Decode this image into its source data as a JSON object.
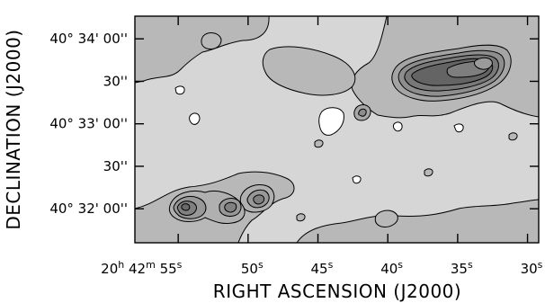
{
  "chart_data": {
    "type": "contour",
    "xlabel": "RIGHT ASCENSION (J2000)",
    "ylabel": "DECLINATION (J2000)",
    "x_ticks": [
      {
        "h": "20",
        "m": "42",
        "s": "55",
        "first": true
      },
      {
        "s": "50"
      },
      {
        "s": "45"
      },
      {
        "s": "40"
      },
      {
        "s": "35"
      },
      {
        "s": "30"
      }
    ],
    "x_ticks_seconds": [
      55,
      50,
      45,
      40,
      35,
      30
    ],
    "xlim_seconds": [
      58.1,
      29.2
    ],
    "y_ticks": [
      {
        "label": "40° 34' 00''",
        "arcsec": 120
      },
      {
        "label": "30''",
        "arcsec": 90
      },
      {
        "label": "40° 33' 00''",
        "arcsec": 60
      },
      {
        "label": "30''",
        "arcsec": 30
      },
      {
        "label": "40° 32' 00''",
        "arcsec": 0
      }
    ],
    "ylim_arcsec": [
      -24,
      136
    ],
    "background_gray": "#d8d8d8",
    "sources": [
      {
        "name": "north-west-source",
        "ra_s": 33.5,
        "dec_arcsec": 104,
        "peak_levels": 6
      },
      {
        "name": "central-knot",
        "ra_s": 46.4,
        "dec_arcsec": 21,
        "peak_levels": 3
      },
      {
        "name": "south-east-pair-1",
        "ra_s": 54.3,
        "dec_arcsec": 2,
        "peak_levels": 4
      },
      {
        "name": "south-east-pair-2",
        "ra_s": 51.0,
        "dec_arcsec": 1,
        "peak_levels": 3
      },
      {
        "name": "small-knot",
        "ra_s": 40.2,
        "dec_arcsec": 75,
        "peak_levels": 2
      }
    ]
  }
}
